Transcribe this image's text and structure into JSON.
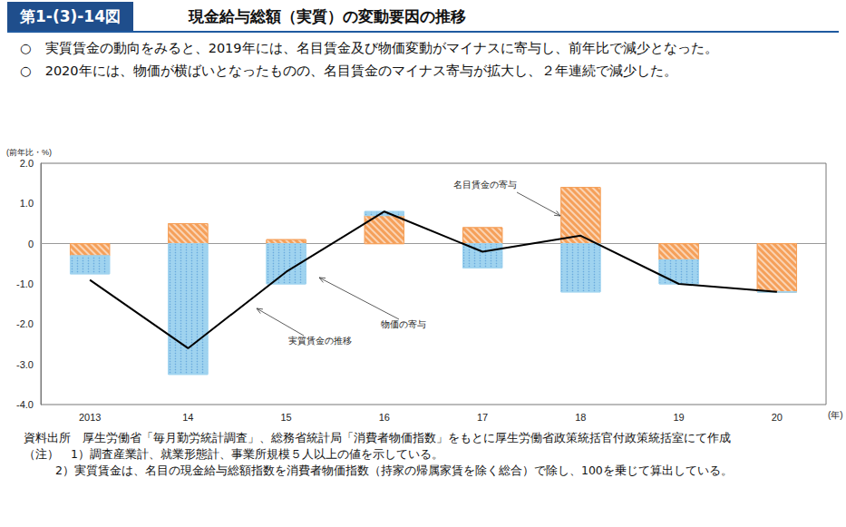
{
  "figure_number": "第1-(3)-14図",
  "bullets": [
    "○　実質賃金の動向をみると、2019年には、名目賃金及び物価変動がマイナスに寄与し、前年比で減少となった。",
    "○　2020年には、物価が横ばいとなったものの、名目賃金のマイナス寄与が拡大し、２年連続で減少した。"
  ],
  "source": "資料出所　厚生労働省「毎月勤労統計調査」、総務省統計局「消費者物価指数」をもとに厚生労働省政策統括官付政策統括室にて作成",
  "notes": [
    "（注）　1）調査産業計、就業形態計、事業所規模５人以上の値を示している。",
    "2）実質賃金は、名目の現金給与総額指数を消費者物価指数（持家の帰属家賃を除く総合）で除し、100を乗じて算出している。"
  ],
  "chart_data": {
    "type": "bar",
    "title": "現金給与総額（実質）の変動要因の推移",
    "y_label": "(前年比・%)",
    "x_label": "(年)",
    "categories": [
      "2013",
      "14",
      "15",
      "16",
      "17",
      "18",
      "19",
      "20"
    ],
    "stacked": true,
    "grid": false,
    "series": [
      {
        "name": "名目賃金の寄与",
        "type": "bar",
        "color": "#f5a05a",
        "values": [
          -0.3,
          0.5,
          0.1,
          0.7,
          0.4,
          1.4,
          -0.4,
          -1.2
        ]
      },
      {
        "name": "物価の寄与",
        "type": "bar",
        "color": "#9fd3ef",
        "values": [
          -0.45,
          -3.25,
          -1.0,
          0.1,
          -0.6,
          -1.2,
          -0.6,
          0.0
        ]
      },
      {
        "name": "実質賃金の推移",
        "type": "line",
        "color": "#000000",
        "values": [
          -0.9,
          -2.6,
          -0.7,
          0.8,
          -0.2,
          0.2,
          -1.0,
          -1.2
        ]
      }
    ],
    "ylim": [
      -4,
      2
    ],
    "yticks": [
      {
        "value": -4,
        "label": "-4.0"
      },
      {
        "value": -3,
        "label": "-3.0"
      },
      {
        "value": -2,
        "label": "-2.0"
      },
      {
        "value": -1,
        "label": "-1.0"
      },
      0,
      {
        "value": 1,
        "label": "1.0"
      },
      {
        "value": 2,
        "label": "2.0"
      }
    ]
  }
}
